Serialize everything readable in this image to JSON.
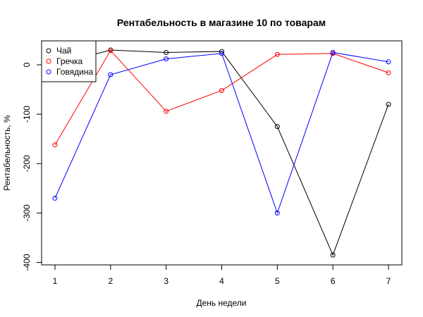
{
  "chart_data": {
    "type": "line",
    "title": "Рентабельность в магазине 10 по товарам",
    "xlabel": "День недели",
    "ylabel": "Рентабельность, %",
    "x": [
      1,
      2,
      3,
      4,
      5,
      6,
      7
    ],
    "xlim": [
      1,
      7
    ],
    "ylim": [
      -400,
      30
    ],
    "xticks": [
      1,
      2,
      3,
      4,
      5,
      6,
      7
    ],
    "yticks": [
      -400,
      -300,
      -200,
      -100,
      0
    ],
    "grid": false,
    "legend": "top-left",
    "series": [
      {
        "name": "Чай",
        "color": "#000000",
        "values": [
          0,
          30,
          25,
          27,
          -125,
          -385,
          -80
        ]
      },
      {
        "name": "Гречка",
        "color": "#ff0000",
        "values": [
          -162,
          29,
          -94,
          -52,
          21,
          23,
          -16
        ]
      },
      {
        "name": "Говядина",
        "color": "#0000ff",
        "values": [
          -270,
          -20,
          12,
          23,
          -300,
          25,
          6
        ]
      }
    ]
  }
}
